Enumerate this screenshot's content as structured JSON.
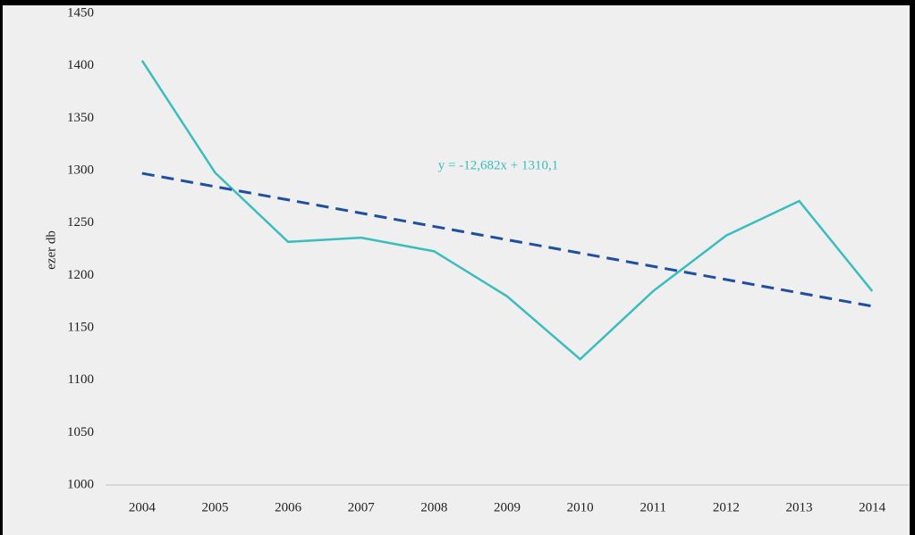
{
  "chart_data": {
    "type": "line",
    "y_label": "ezer db",
    "annotation": "y = -12,682x + 1310,1",
    "categories": [
      "2004",
      "2005",
      "2006",
      "2007",
      "2008",
      "2009",
      "2010",
      "2011",
      "2012",
      "2013",
      "2014"
    ],
    "series": [
      {
        "color": "#3bbdbd",
        "values": [
          1405,
          1298,
          1232,
          1236,
          1223,
          1180,
          1120,
          1185,
          1238,
          1271,
          1185
        ]
      },
      {
        "color": "#1f4fa0",
        "dashed": true,
        "values": [
          1297.4,
          1284.7,
          1272.1,
          1259.4,
          1246.7,
          1234.0,
          1221.3,
          1208.6,
          1196.0,
          1183.3,
          1170.6
        ]
      }
    ],
    "ylim": [
      1000,
      1450
    ],
    "yticks": [
      1000,
      1050,
      1100,
      1150,
      1200,
      1250,
      1300,
      1350,
      1400,
      1450
    ]
  }
}
